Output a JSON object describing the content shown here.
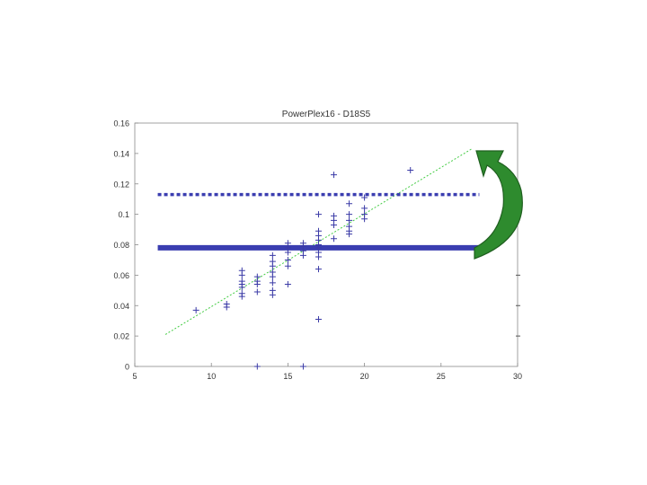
{
  "chart_data": {
    "type": "scatter",
    "title": "PowerPlex16 - D18S5",
    "xlabel": "",
    "ylabel": "",
    "xlim": [
      5,
      30
    ],
    "ylim": [
      0,
      0.16
    ],
    "x_ticks": [
      5,
      10,
      15,
      20,
      25,
      30
    ],
    "y_ticks": [
      0,
      0.02,
      0.04,
      0.06,
      0.08,
      0.1,
      0.12,
      0.14,
      0.16
    ],
    "x_tick_labels": [
      "5",
      "10",
      "15",
      "20",
      "25",
      "30"
    ],
    "y_tick_labels": [
      "0",
      "0.02",
      "0.04",
      "0.06",
      "0.08",
      "0.1",
      "0.12",
      "0.14",
      "0.16"
    ],
    "grid": false,
    "colors": {
      "points": "#3a3aa6",
      "fit_line": "#44cc44",
      "threshold_lines": "#3a3db0",
      "arrow": "#2e8b2e"
    },
    "series": [
      {
        "type": "scatter",
        "points": [
          [
            9,
            0.037
          ],
          [
            11,
            0.039
          ],
          [
            11,
            0.041
          ],
          [
            12,
            0.046
          ],
          [
            12,
            0.048
          ],
          [
            12,
            0.052
          ],
          [
            12,
            0.054
          ],
          [
            12,
            0.056
          ],
          [
            12,
            0.06
          ],
          [
            12,
            0.063
          ],
          [
            13,
            0.049
          ],
          [
            13,
            0.054
          ],
          [
            13,
            0.056
          ],
          [
            13,
            0.059
          ],
          [
            13,
            0
          ],
          [
            14,
            0.047
          ],
          [
            14,
            0.05
          ],
          [
            14,
            0.055
          ],
          [
            14,
            0.059
          ],
          [
            14,
            0.062
          ],
          [
            14,
            0.066
          ],
          [
            14,
            0.069
          ],
          [
            14,
            0.073
          ],
          [
            15,
            0.066
          ],
          [
            15,
            0.07
          ],
          [
            15,
            0.075
          ],
          [
            15,
            0.078
          ],
          [
            15,
            0.081
          ],
          [
            15,
            0.054
          ],
          [
            16,
            0.073
          ],
          [
            16,
            0.076
          ],
          [
            16,
            0.079
          ],
          [
            16,
            0.081
          ],
          [
            16,
            0
          ],
          [
            17,
            0.031
          ],
          [
            17,
            0.064
          ],
          [
            17,
            0.072
          ],
          [
            17,
            0.075
          ],
          [
            17,
            0.078
          ],
          [
            17,
            0.08
          ],
          [
            17,
            0.083
          ],
          [
            17,
            0.086
          ],
          [
            17,
            0.089
          ],
          [
            17,
            0.1
          ],
          [
            18,
            0.084
          ],
          [
            18,
            0.093
          ],
          [
            18,
            0.096
          ],
          [
            18,
            0.099
          ],
          [
            18,
            0.126
          ],
          [
            19,
            0.087
          ],
          [
            19,
            0.089
          ],
          [
            19,
            0.092
          ],
          [
            19,
            0.096
          ],
          [
            19,
            0.1
          ],
          [
            19,
            0.107
          ],
          [
            20,
            0.097
          ],
          [
            20,
            0.1
          ],
          [
            20,
            0.104
          ],
          [
            20,
            0.111
          ],
          [
            23,
            0.129
          ]
        ]
      },
      {
        "type": "line",
        "style": "dotted",
        "x": [
          7,
          27
        ],
        "y": [
          0.021,
          0.143
        ]
      }
    ],
    "threshold_lines": [
      {
        "style": "dotted",
        "y": 0.113,
        "x": [
          6.5,
          27.5
        ]
      },
      {
        "style": "solid",
        "y": 0.078,
        "x": [
          6.5,
          27.5
        ]
      }
    ],
    "right_edge_dashes_y": [
      0.06,
      0.04,
      0.02
    ]
  }
}
